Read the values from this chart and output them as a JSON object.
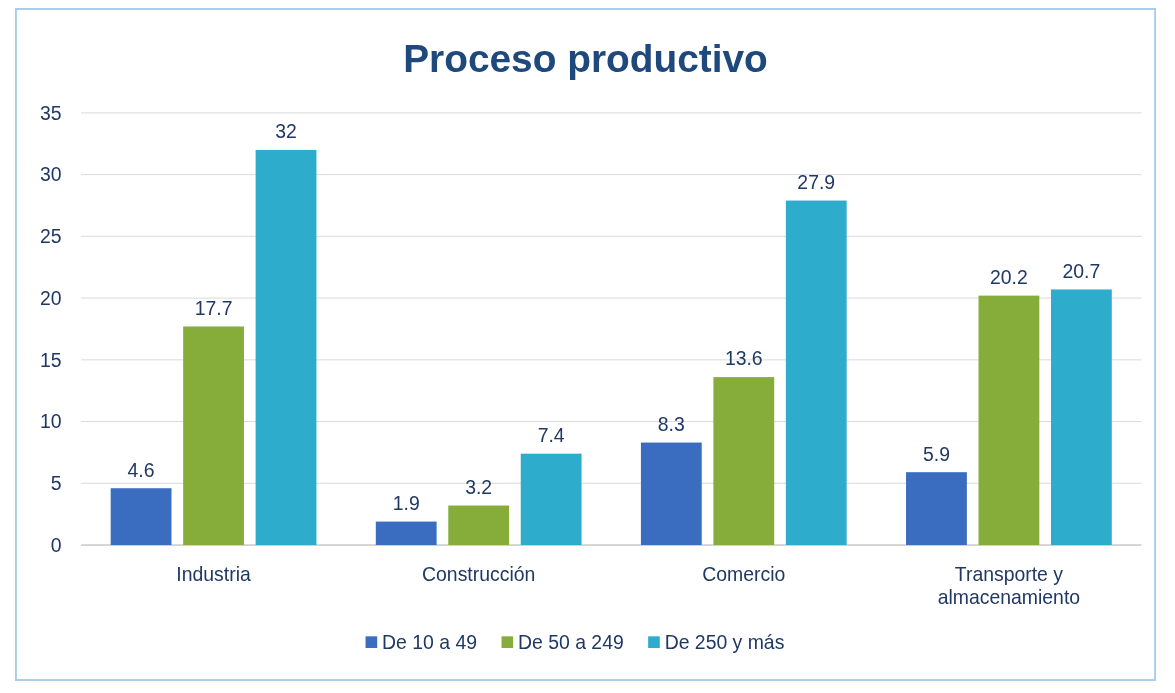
{
  "chart_data": {
    "type": "bar",
    "title": "Proceso productivo",
    "categories": [
      "Industria",
      "Construcción",
      "Comercio",
      "Transporte y almacenamiento"
    ],
    "series": [
      {
        "name": "De 10 a 49",
        "color": "#3a6cc0",
        "values": [
          4.6,
          1.9,
          8.3,
          5.9
        ]
      },
      {
        "name": "De 50 a 249",
        "color": "#86ad3a",
        "values": [
          17.7,
          3.2,
          13.6,
          20.2
        ]
      },
      {
        "name": "De 250 y más",
        "color": "#2eaccc",
        "values": [
          32,
          7.4,
          27.9,
          20.7
        ]
      }
    ],
    "ylim": [
      0,
      35
    ],
    "yticks": [
      0,
      5,
      10,
      15,
      20,
      25,
      30,
      35
    ],
    "grid": "y",
    "legend": "bottom",
    "data_labels": true
  }
}
